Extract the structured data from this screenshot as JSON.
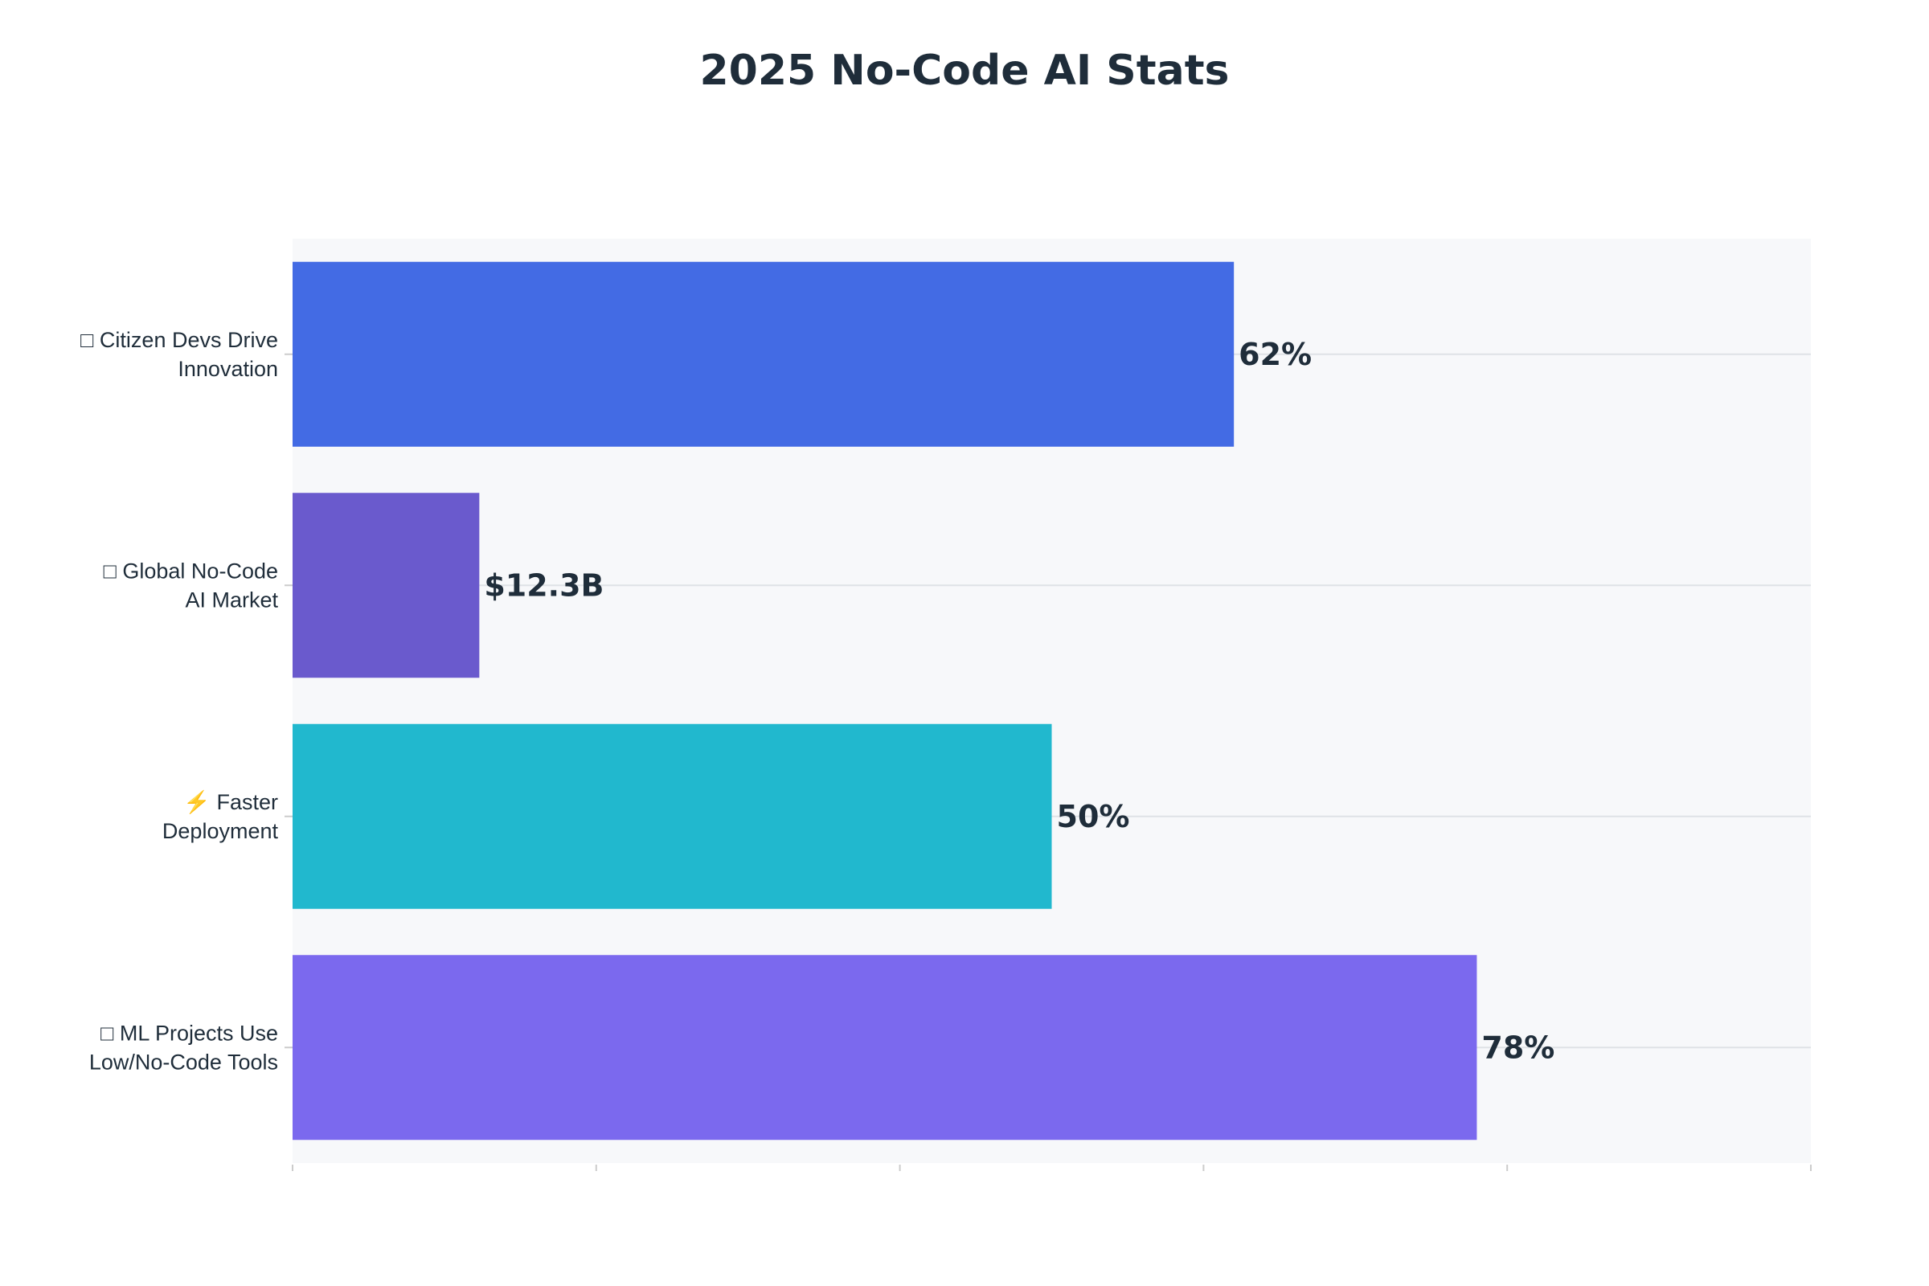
{
  "chart_data": {
    "type": "bar",
    "orientation": "horizontal",
    "title": "2025 No-Code AI Stats",
    "xlabel": "",
    "ylabel": "",
    "xlim": [
      0,
      100
    ],
    "grid": true,
    "categories": [
      [
        "□ Citizen Devs Drive",
        "Innovation"
      ],
      [
        "□ Global No-Code",
        "AI Market"
      ],
      [
        "⚡ Faster",
        "Deployment"
      ],
      [
        "□ ML Projects Use",
        "Low/No-Code Tools"
      ]
    ],
    "values": [
      62,
      12.3,
      50,
      78
    ],
    "data_labels": [
      "62%",
      "$12.3B",
      "50%",
      "78%"
    ],
    "colors": [
      "#436be4",
      "#6a5acd",
      "#21b8ce",
      "#7b69ee"
    ]
  }
}
